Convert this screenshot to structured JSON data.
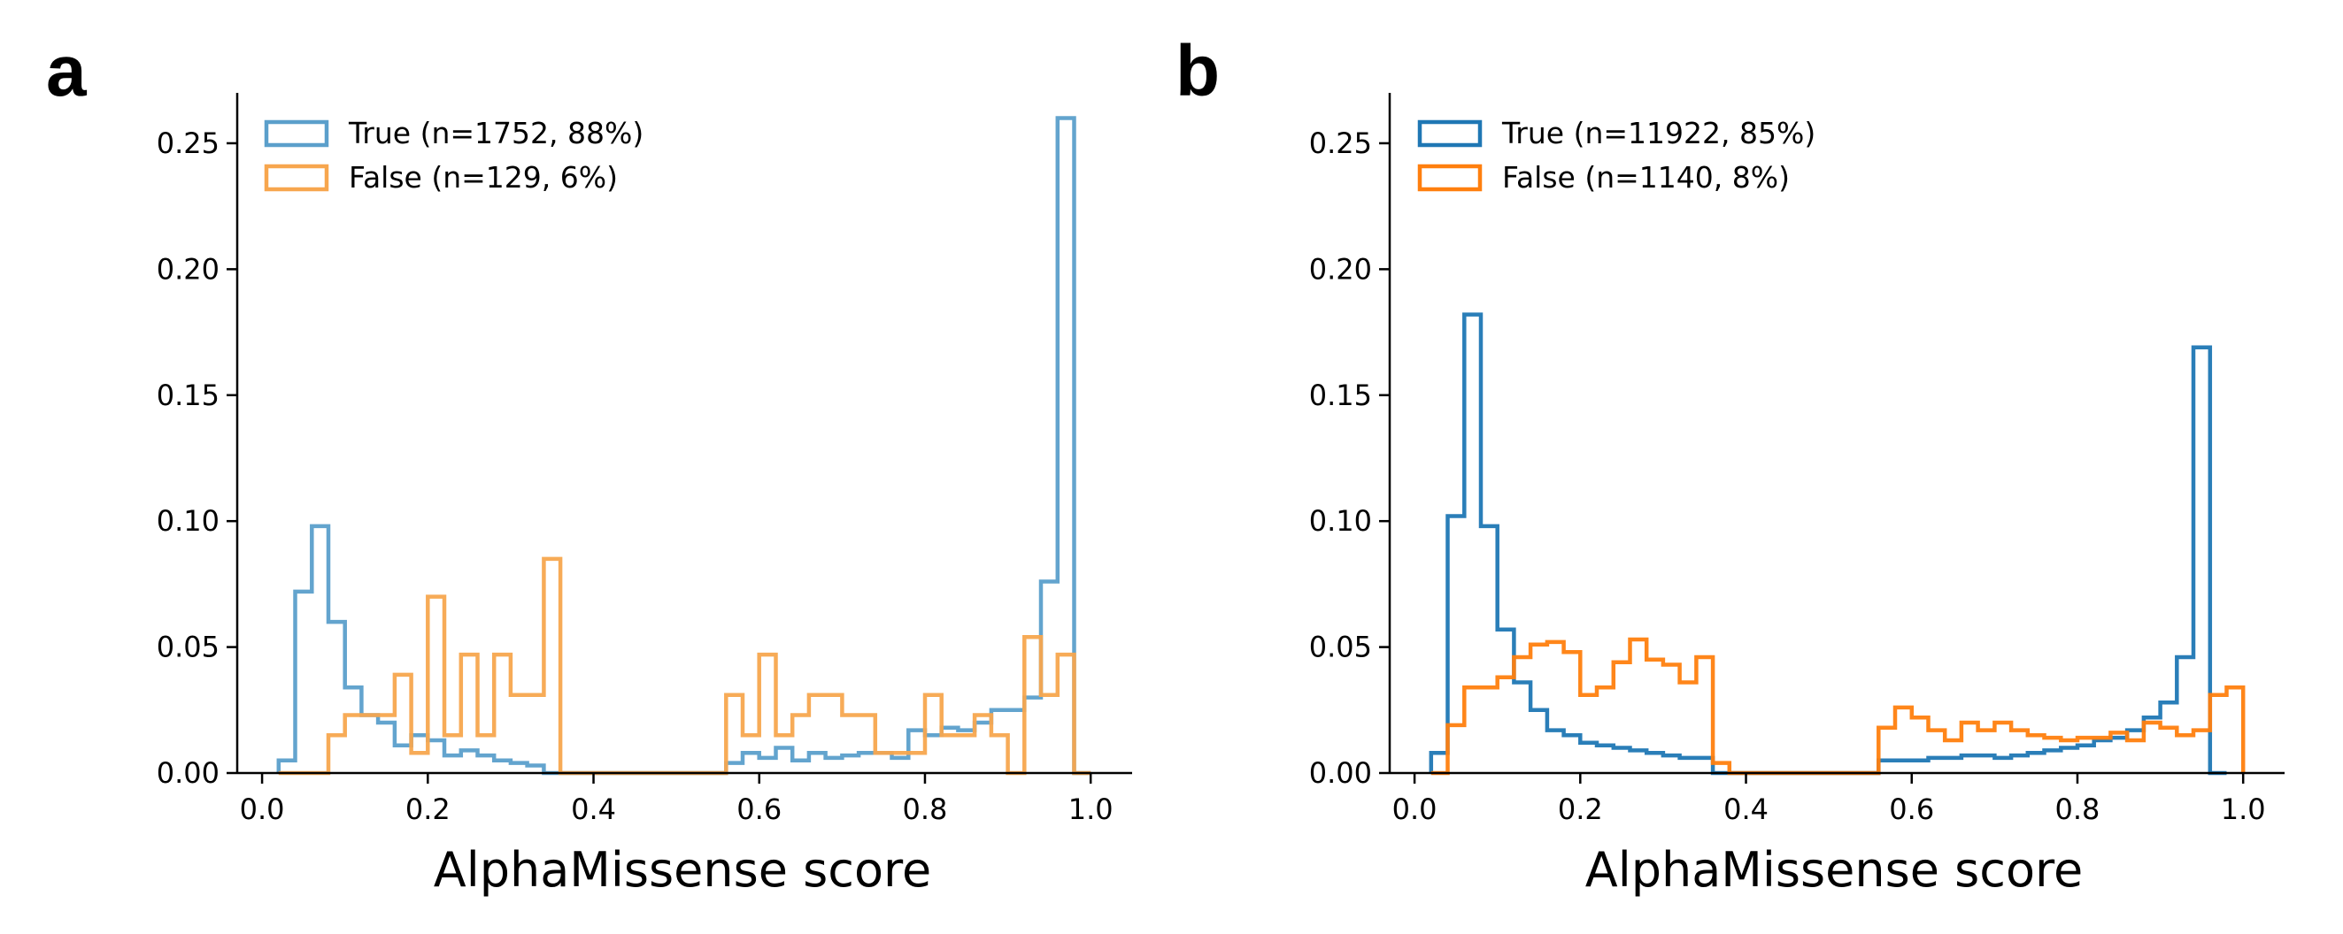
{
  "chart_data": [
    {
      "type": "histogram-step",
      "panel_label": "a",
      "title": "",
      "xlabel": "AlphaMissense score",
      "ylabel": "",
      "xlim": [
        -0.03,
        1.05
      ],
      "ylim": [
        0,
        0.27
      ],
      "xticks": [
        0.0,
        0.2,
        0.4,
        0.6,
        0.8,
        1.0
      ],
      "xtick_labels": [
        "0.0",
        "0.2",
        "0.4",
        "0.6",
        "0.8",
        "1.0"
      ],
      "yticks": [
        0.0,
        0.05,
        0.1,
        0.15,
        0.2,
        0.25
      ],
      "ytick_labels": [
        "0.00",
        "0.05",
        "0.10",
        "0.15",
        "0.20",
        "0.25"
      ],
      "legend_position": "top-left",
      "bin_width": 0.02,
      "series": [
        {
          "name": "True (n=1752, 88%)",
          "color": "#5b9fcb",
          "bin_start": 0.02,
          "values": [
            0.005,
            0.072,
            0.098,
            0.06,
            0.034,
            0.023,
            0.02,
            0.011,
            0.015,
            0.013,
            0.007,
            0.009,
            0.007,
            0.005,
            0.004,
            0.003,
            0,
            0,
            0,
            0,
            0,
            0,
            0,
            0,
            0,
            0,
            0,
            0.004,
            0.008,
            0.006,
            0.01,
            0.005,
            0.008,
            0.006,
            0.007,
            0.008,
            0.008,
            0.006,
            0.017,
            0.015,
            0.018,
            0.017,
            0.02,
            0.025,
            0.025,
            0.03,
            0.076,
            0.26,
            0
          ]
        },
        {
          "name": "False (n=129, 6%)",
          "color": "#f7a64e",
          "bin_start": 0.02,
          "values": [
            0,
            0,
            0,
            0.015,
            0.023,
            0.023,
            0.023,
            0.039,
            0.008,
            0.07,
            0.015,
            0.047,
            0.015,
            0.047,
            0.031,
            0.031,
            0.085,
            0,
            0,
            0,
            0,
            0,
            0,
            0,
            0,
            0,
            0,
            0.031,
            0.015,
            0.047,
            0.015,
            0.023,
            0.031,
            0.031,
            0.023,
            0.023,
            0.008,
            0.008,
            0.008,
            0.031,
            0.015,
            0.015,
            0.023,
            0.015,
            0,
            0.054,
            0.031,
            0.047,
            0
          ]
        }
      ]
    },
    {
      "type": "histogram-step",
      "panel_label": "b",
      "title": "",
      "xlabel": "AlphaMissense score",
      "ylabel": "",
      "xlim": [
        -0.03,
        1.05
      ],
      "ylim": [
        0,
        0.27
      ],
      "xticks": [
        0.0,
        0.2,
        0.4,
        0.6,
        0.8,
        1.0
      ],
      "xtick_labels": [
        "0.0",
        "0.2",
        "0.4",
        "0.6",
        "0.8",
        "1.0"
      ],
      "yticks": [
        0.0,
        0.05,
        0.1,
        0.15,
        0.2,
        0.25
      ],
      "ytick_labels": [
        "0.00",
        "0.05",
        "0.10",
        "0.15",
        "0.20",
        "0.25"
      ],
      "legend_position": "top-left",
      "bin_width": 0.02,
      "series": [
        {
          "name": "True (n=11922, 85%)",
          "color": "#1f77b4",
          "bin_start": 0.02,
          "values": [
            0.008,
            0.102,
            0.182,
            0.098,
            0.057,
            0.036,
            0.025,
            0.017,
            0.015,
            0.012,
            0.011,
            0.01,
            0.009,
            0.008,
            0.007,
            0.006,
            0.006,
            0,
            0,
            0,
            0,
            0,
            0,
            0,
            0,
            0,
            0,
            0.005,
            0.005,
            0.005,
            0.006,
            0.006,
            0.007,
            0.007,
            0.006,
            0.007,
            0.008,
            0.009,
            0.01,
            0.011,
            0.013,
            0.014,
            0.017,
            0.022,
            0.028,
            0.046,
            0.169,
            0
          ]
        },
        {
          "name": "False (n=1140, 8%)",
          "color": "#ff7f0e",
          "bin_start": 0.02,
          "values": [
            0,
            0.019,
            0.034,
            0.034,
            0.038,
            0.046,
            0.051,
            0.052,
            0.048,
            0.031,
            0.034,
            0.044,
            0.053,
            0.045,
            0.043,
            0.036,
            0.046,
            0.004,
            0,
            0,
            0,
            0,
            0,
            0,
            0,
            0,
            0,
            0.018,
            0.026,
            0.022,
            0.017,
            0.013,
            0.02,
            0.017,
            0.02,
            0.017,
            0.015,
            0.014,
            0.013,
            0.014,
            0.014,
            0.016,
            0.013,
            0.02,
            0.018,
            0.015,
            0.017,
            0.031,
            0.034
          ]
        }
      ]
    }
  ]
}
